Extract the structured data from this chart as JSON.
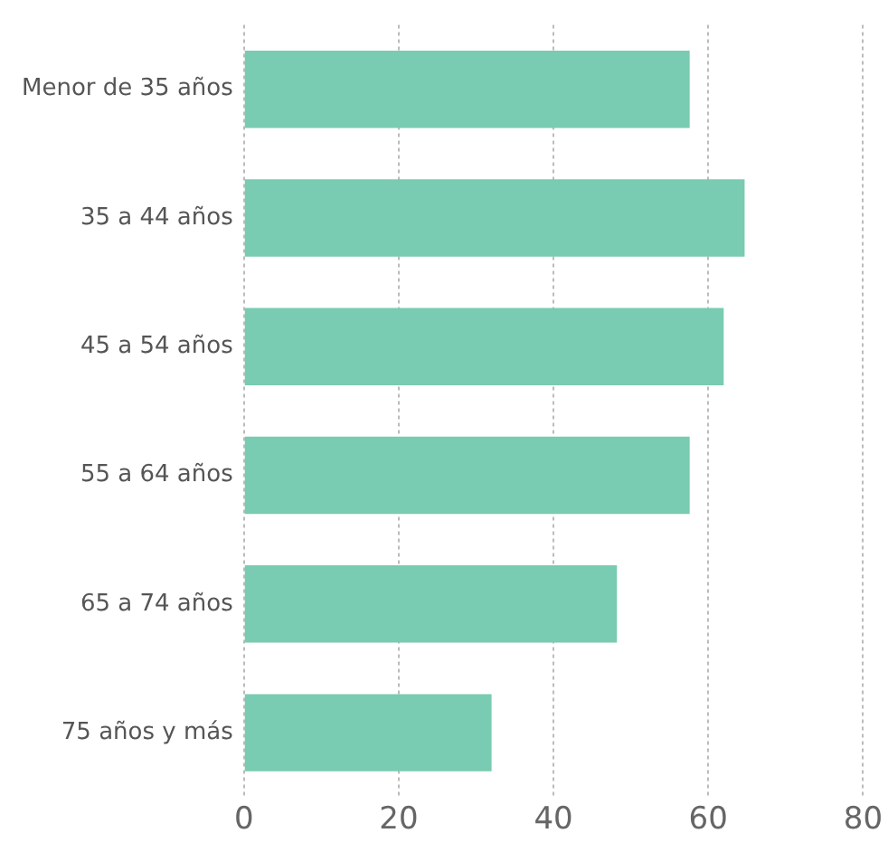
{
  "chart_data": {
    "type": "bar",
    "orientation": "horizontal",
    "categories": [
      "Menor de 35 años",
      "35 a 44 años",
      "45 a 54 años",
      "55 a 64 años",
      "65 a 74 años",
      "75 años y más"
    ],
    "values": [
      57.6,
      64.7,
      62.0,
      57.6,
      48.2,
      32.0
    ],
    "color": "#79cbb1",
    "xlim": [
      0,
      80
    ],
    "xticks": [
      0,
      20,
      40,
      60,
      80
    ],
    "grid": "x",
    "legend": false
  }
}
